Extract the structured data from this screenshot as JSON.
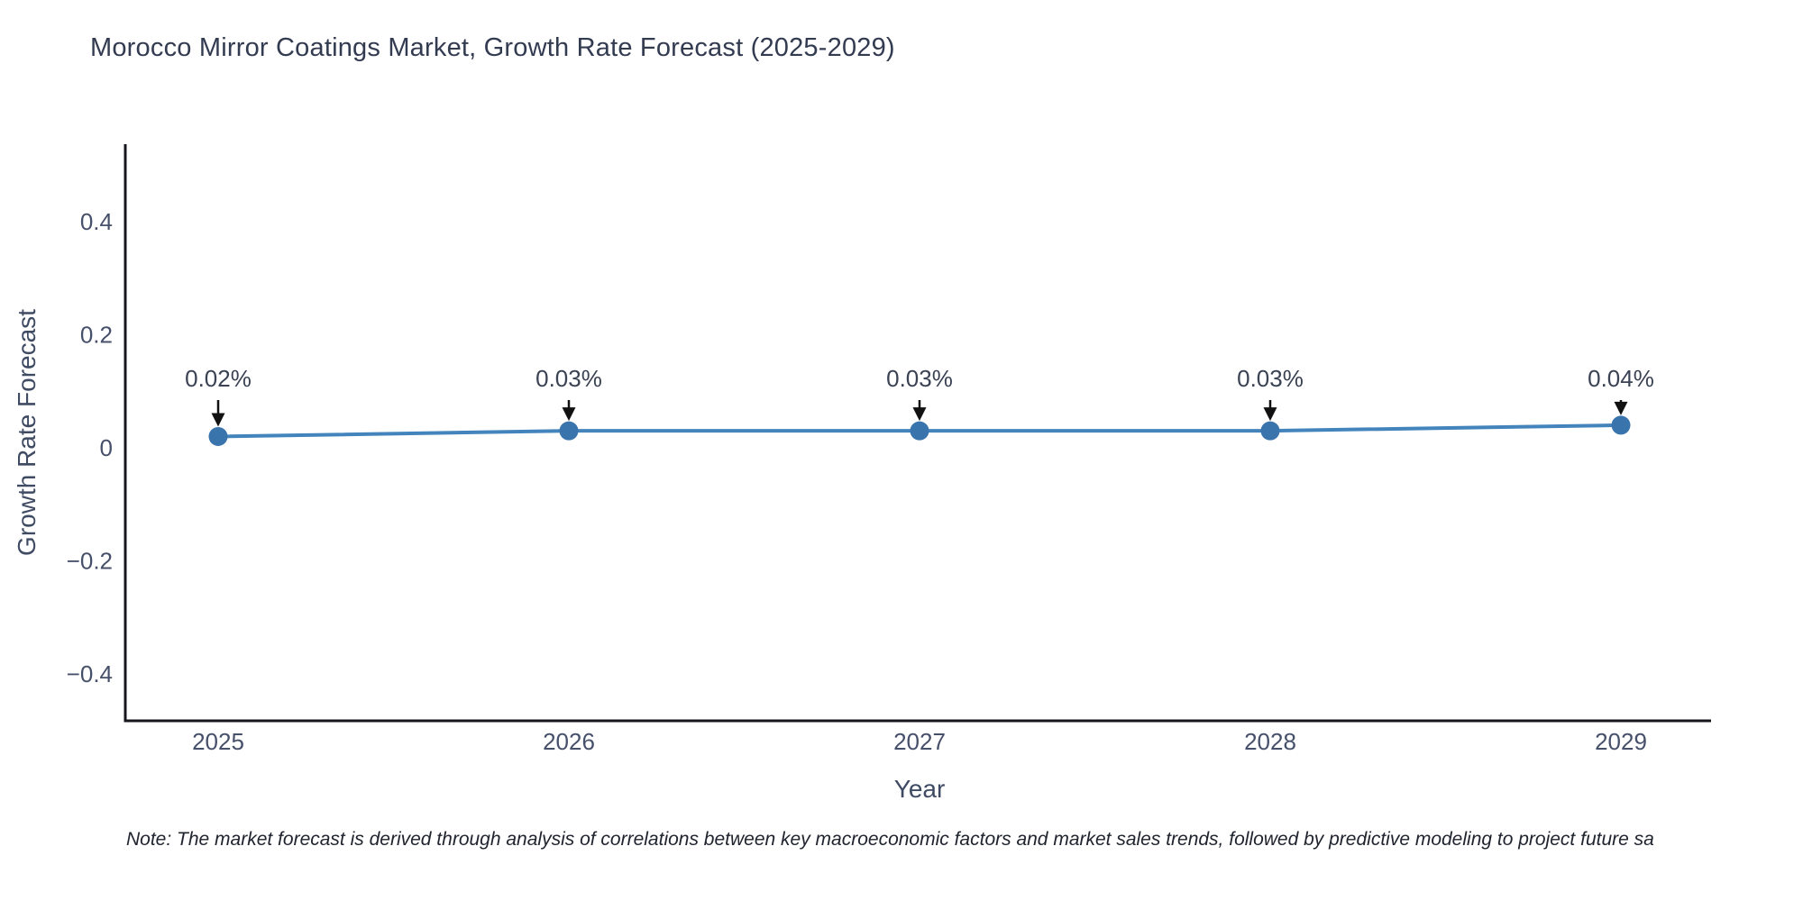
{
  "title": "Morocco Mirror Coatings Market, Growth Rate Forecast (2025-2029)",
  "note": "Note: The market forecast is derived through analysis of correlations between key macroeconomic factors and market sales trends, followed by predictive modeling to project future sa",
  "chart_data": {
    "type": "line",
    "title": "Morocco Mirror Coatings Market, Growth Rate Forecast (2025-2029)",
    "x": [
      2025,
      2026,
      2027,
      2028,
      2029
    ],
    "series": [
      {
        "name": "Growth Rate Forecast",
        "values": [
          0.02,
          0.03,
          0.03,
          0.03,
          0.04
        ]
      }
    ],
    "point_labels": [
      "0.02%",
      "0.03%",
      "0.03%",
      "0.03%",
      "0.04%"
    ],
    "xlabel": "Year",
    "ylabel": "Growth Rate Forecast",
    "xticks": [
      2025,
      2026,
      2027,
      2028,
      2029
    ],
    "x_tick_labels": [
      "2025",
      "2026",
      "2027",
      "2028",
      "2029"
    ],
    "yticks": [
      0.4,
      0.2,
      0,
      -0.2,
      -0.4
    ],
    "y_tick_labels": [
      "0.4",
      "0.2",
      "0",
      "−0.2",
      "−0.4"
    ],
    "ylim": [
      -0.48,
      0.54
    ],
    "xlim": [
      2024.74,
      2029.26
    ],
    "grid": false,
    "legend": false,
    "annotations_have_arrows": true,
    "colors": {
      "line": "#4484bc",
      "marker": "#3a74ad",
      "axis": "#16161d",
      "arrow": "#111111",
      "tick_text": "#47506a",
      "annotation_text": "#3b4254"
    }
  }
}
